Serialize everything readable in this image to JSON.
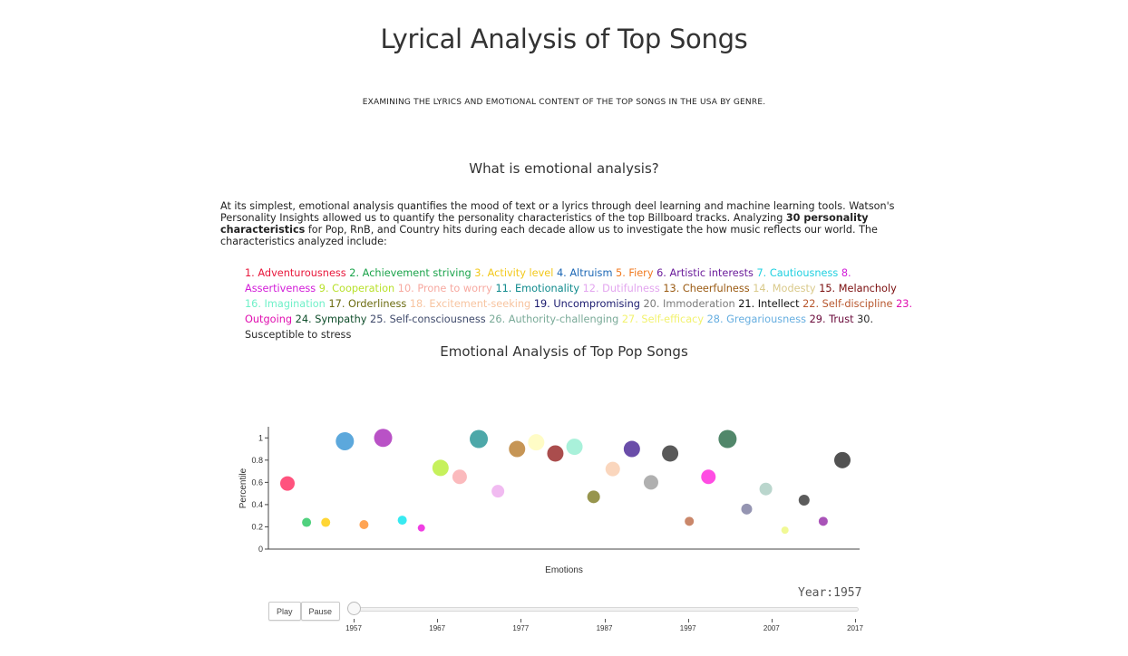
{
  "page": {
    "title": "Lyrical Analysis of Top Songs",
    "subtitle": "EXAMINING THE LYRICS AND EMOTIONAL CONTENT OF THE TOP SONGS IN THE USA BY GENRE.",
    "section_heading": "What is emotional analysis?",
    "intro_part1": "At its simplest, emotional analysis quantifies the mood of text or a lyrics through deel learning and machine learning tools. Watson's Personality Insights allowed us to quantify the personality characteristics of the top Billboard tracks. Analyzing ",
    "intro_bold": "30 personality characteristics",
    "intro_part2": " for Pop, RnB, and Country hits during each decade allow us to investigate the how music reflects our world. The characteristics analyzed include:"
  },
  "emotions": [
    {
      "text": "1. Adventurousness",
      "color": "#e8173b"
    },
    {
      "text": "2. Achievement striving",
      "color": "#1aa34a"
    },
    {
      "text": "3. Activity level",
      "color": "#f2c81a"
    },
    {
      "text": "4. Altruism",
      "color": "#1c67b5"
    },
    {
      "text": "5. Fiery",
      "color": "#f07a20"
    },
    {
      "text": "6. Artistic interests",
      "color": "#6a1b9a"
    },
    {
      "text": "7. Cautiousness",
      "color": "#1fd0e0"
    },
    {
      "text": "8. Assertiveness",
      "color": "#d21bd8"
    },
    {
      "text": "9. Cooperation",
      "color": "#b8e02a"
    },
    {
      "text": "10. Prone to worry",
      "color": "#f7a9a0"
    },
    {
      "text": "11. Emotionality",
      "color": "#0f8a8c"
    },
    {
      "text": "12. Dutifulness",
      "color": "#e3a6ef"
    },
    {
      "text": "13. Cheerfulness",
      "color": "#9a5a12"
    },
    {
      "text": "14. Modesty",
      "color": "#d9c98a"
    },
    {
      "text": "15. Melancholy",
      "color": "#7a0d0d"
    },
    {
      "text": "16. Imagination",
      "color": "#6ff0c8"
    },
    {
      "text": "17. Orderliness",
      "color": "#6b6b10"
    },
    {
      "text": "18. Excitement-seeking",
      "color": "#f7c4a0"
    },
    {
      "text": "19. Uncompromising",
      "color": "#1a1a6e"
    },
    {
      "text": "20. Immoderation",
      "color": "#7a7a7a"
    },
    {
      "text": "21. Intellect",
      "color": "#111111"
    },
    {
      "text": "22. Self-discipline",
      "color": "#b8582f"
    },
    {
      "text": "23. Outgoing",
      "color": "#e00fb0"
    },
    {
      "text": "24. Sympathy",
      "color": "#0e4d2a"
    },
    {
      "text": "25. Self-consciousness",
      "color": "#3f4a6b"
    },
    {
      "text": "26. Authority-challenging",
      "color": "#7aaa98"
    },
    {
      "text": "27. Self-efficacy",
      "color": "#f2f26e"
    },
    {
      "text": "28. Gregariousness",
      "color": "#66aee0"
    },
    {
      "text": "29. Trust",
      "color": "#6a0a3a"
    },
    {
      "text": "30. Susceptible to stress",
      "color": "#2a2a2a"
    }
  ],
  "chart_data": {
    "type": "scatter",
    "title": "Emotional Analysis of Top Pop Songs",
    "xlabel": "Emotions",
    "ylabel": "Percentile",
    "ylim": [
      0,
      1.1
    ],
    "yticks": [
      "0",
      "0.2",
      "0.4",
      "0.6",
      "0.8",
      "1"
    ],
    "grid": false,
    "points": [
      {
        "x": 1,
        "y": 0.59,
        "r": 8,
        "color": "#ff4070"
      },
      {
        "x": 2,
        "y": 0.24,
        "r": 5,
        "color": "#3dcc70"
      },
      {
        "x": 3,
        "y": 0.24,
        "r": 5,
        "color": "#ffd21f"
      },
      {
        "x": 4,
        "y": 0.97,
        "r": 10,
        "color": "#4a9fd8"
      },
      {
        "x": 5,
        "y": 0.22,
        "r": 5,
        "color": "#ff9a40"
      },
      {
        "x": 6,
        "y": 1.0,
        "r": 10,
        "color": "#b13fc0"
      },
      {
        "x": 7,
        "y": 0.26,
        "r": 5,
        "color": "#22e8f0"
      },
      {
        "x": 8,
        "y": 0.19,
        "r": 4,
        "color": "#ee2ae0"
      },
      {
        "x": 9,
        "y": 0.73,
        "r": 9,
        "color": "#c0f04a"
      },
      {
        "x": 10,
        "y": 0.65,
        "r": 8,
        "color": "#fbb2b6"
      },
      {
        "x": 11,
        "y": 0.99,
        "r": 10,
        "color": "#3a9ea0"
      },
      {
        "x": 12,
        "y": 0.52,
        "r": 7,
        "color": "#efb4f0"
      },
      {
        "x": 13,
        "y": 0.9,
        "r": 9,
        "color": "#c08a42"
      },
      {
        "x": 14,
        "y": 0.96,
        "r": 9,
        "color": "#fffcc0"
      },
      {
        "x": 15,
        "y": 0.86,
        "r": 9,
        "color": "#a13a3a"
      },
      {
        "x": 16,
        "y": 0.92,
        "r": 9,
        "color": "#a0f0d6"
      },
      {
        "x": 17,
        "y": 0.47,
        "r": 7,
        "color": "#8c8a3a"
      },
      {
        "x": 18,
        "y": 0.72,
        "r": 8,
        "color": "#fad2b6"
      },
      {
        "x": 19,
        "y": 0.9,
        "r": 9,
        "color": "#5a3aa0"
      },
      {
        "x": 20,
        "y": 0.6,
        "r": 8,
        "color": "#a7a7a7"
      },
      {
        "x": 21,
        "y": 0.86,
        "r": 9,
        "color": "#474747"
      },
      {
        "x": 22,
        "y": 0.25,
        "r": 5,
        "color": "#c47a5a"
      },
      {
        "x": 23,
        "y": 0.65,
        "r": 8,
        "color": "#ff3ae0"
      },
      {
        "x": 24,
        "y": 0.99,
        "r": 10,
        "color": "#3e7a5a"
      },
      {
        "x": 25,
        "y": 0.36,
        "r": 6,
        "color": "#8a8aaa"
      },
      {
        "x": 26,
        "y": 0.54,
        "r": 7,
        "color": "#b2d2c8"
      },
      {
        "x": 27,
        "y": 0.17,
        "r": 4,
        "color": "#f0f88a"
      },
      {
        "x": 28,
        "y": 0.44,
        "r": 6,
        "color": "#4a4a4a"
      },
      {
        "x": 29,
        "y": 0.25,
        "r": 5,
        "color": "#a040b0"
      },
      {
        "x": 30,
        "y": 0.8,
        "r": 9,
        "color": "#3f3f3f"
      }
    ]
  },
  "controls": {
    "play_label": "Play",
    "pause_label": "Pause",
    "year_prefix": "Year:",
    "year_value": "1957",
    "slider_ticks": [
      "1957",
      "1967",
      "1977",
      "1987",
      "1997",
      "2007",
      "2017"
    ],
    "slider_value": 1957
  }
}
